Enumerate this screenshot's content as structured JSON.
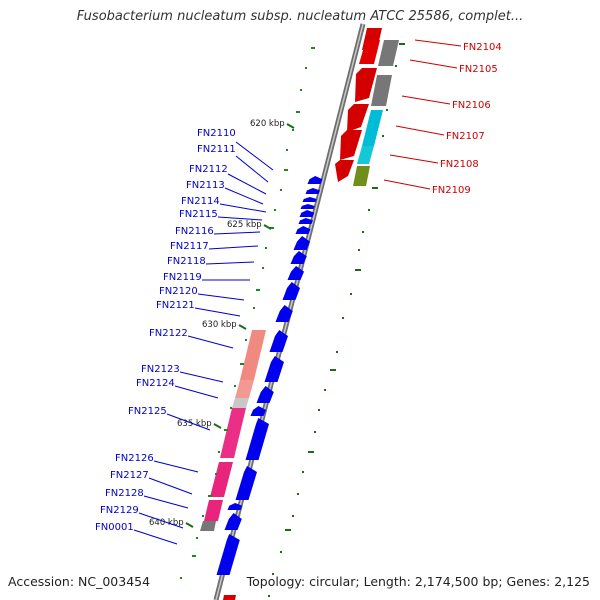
{
  "title": "Fusobacterium nucleatum subsp. nucleatum ATCC 25586, complet...",
  "accession_text": "Accession: NC_003454",
  "summary_text": "Topology: circular; Length: 2,174,500 bp; Genes: 2,125",
  "colors": {
    "backbone": "#8c8c8c",
    "forward_genes": "#0000ee",
    "reverse_genes": "#d40000",
    "forward_label": "#0000cc",
    "reverse_label": "#cc0000",
    "tick_green": "#1a8a1a",
    "tick_gray": "#1a6e1a"
  },
  "kbp_ticks": [
    "620 kbp",
    "625 kbp",
    "630 kbp",
    "635 kbp",
    "640 kbp"
  ],
  "forward_strand": {
    "labels": [
      "FN2110",
      "FN2111",
      "FN2112",
      "FN2113",
      "FN2114",
      "FN2115",
      "FN2116",
      "FN2117",
      "FN2118",
      "FN2119",
      "FN2120",
      "FN2121",
      "FN2122",
      "FN2123",
      "FN2124",
      "FN2125",
      "FN2126",
      "FN2127",
      "FN2128",
      "FN2129",
      "FN0001"
    ]
  },
  "reverse_strand": {
    "labels": [
      "FN2104",
      "FN2105",
      "FN2106",
      "FN2107",
      "FN2108",
      "FN2109"
    ]
  }
}
